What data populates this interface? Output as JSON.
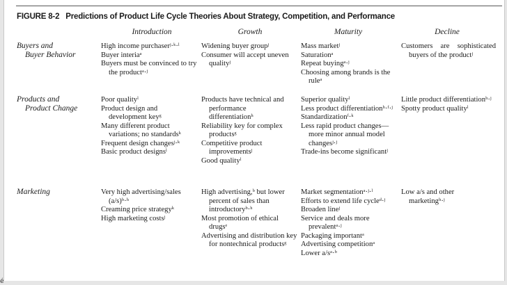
{
  "figure": {
    "label": "FIGURE 8-2",
    "title": "Predictions of Product Life Cycle Theories About Strategy, Competition, and Performance"
  },
  "columns": [
    "Introduction",
    "Growth",
    "Maturity",
    "Decline"
  ],
  "rows": [
    {
      "category_lines": [
        "Buyers and",
        "Buyer Behavior"
      ],
      "cells": [
        [
          "High income purchaserʲ·ᵏ·ˡ",
          "Buyer interiaᵃ",
          "Buyers must be convinced to try the productᵃ·ʲ"
        ],
        [
          "Widening buyer groupʲ",
          "Consumer will accept uneven qualityʲ"
        ],
        [
          "Mass marketʲ",
          "Saturationᵃ",
          "Repeat buyingᵃ·ʲ",
          "Choosing among brands is the ruleᵃ"
        ],
        [
          "Customers are sophisticated buyers of the productʲ"
        ]
      ]
    },
    {
      "category_lines": [
        "Products and",
        "Product Change"
      ],
      "cells": [
        [
          "Poor qualityˡ",
          "Product design and development keyᵍ",
          "Many different product variations; no standardsᵏ",
          "Frequent design changesʲ·ᵏ",
          "Basic product designsˡ"
        ],
        [
          "Products have technical and performance differentiationʰ",
          "Reliability key for complex productsᵍ",
          "Competitive product improvementsʲ",
          "Good qualityˡ"
        ],
        [
          "Superior qualityˡ",
          "Less product differentiationʰ·ᶠ·ʲ",
          "Standardizationᶠ·ᵏ",
          "Less rapid product changes—more minor annual model changesʲ·ʲ",
          "Trade-ins become significantʲ"
        ],
        [
          "Little product differentiationʰ·ʲ",
          "Spotty product qualityˡ"
        ]
      ]
    },
    {
      "category_lines": [
        "Marketing"
      ],
      "cells": [
        [
          "Very high advertising/sales (a/s)ᵇ·ʰ",
          "Creaming price strategyᵏ",
          "High marketing costsʲ"
        ],
        [
          "High advertising,ᵇ but lower percent of sales than introductoryᵇ·ʰ",
          "Most promotion of ethical drugsᵉ",
          "Advertising and distribution key for nontechnical productsᵍ"
        ],
        [
          "Market segmentationᵃ·ʲ·ˡ",
          "Efforts to extend life cycleᵈ·ʲ",
          "Broaden lineʲ",
          "Service and deals more prevalentᵃ·ʲ",
          "Packaging importantᵃ",
          "Advertising competitionᵃ",
          "Lower a/sᵃ·ᵇ"
        ],
        [
          "Low a/s and other marketingʰ·ʲ"
        ]
      ]
    }
  ],
  "corner_mark": "é"
}
